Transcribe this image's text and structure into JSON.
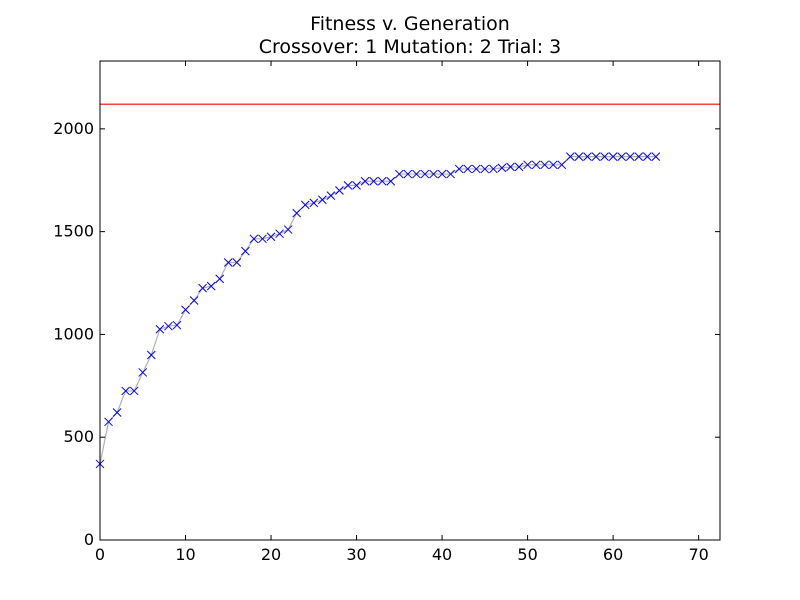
{
  "chart_data": {
    "type": "line",
    "title": "Fitness v. Generation",
    "subtitle": "Crossover: 1 Mutation: 2 Trial: 3",
    "xlim": [
      0,
      72.5
    ],
    "ylim": [
      0,
      2330
    ],
    "x_ticks": [
      0,
      10,
      20,
      30,
      40,
      50,
      60,
      70
    ],
    "y_ticks": [
      0,
      500,
      1000,
      1500,
      2000
    ],
    "grid": false,
    "reference_line": {
      "y": 2120,
      "color": "#ff0000"
    },
    "series": [
      {
        "marker": "x",
        "marker_color": "#0000ff",
        "line_color": "#b0b0b0",
        "x": [
          0,
          1,
          2,
          3,
          4,
          5,
          6,
          7,
          8,
          9,
          10,
          11,
          12,
          13,
          14,
          15,
          16,
          17,
          18,
          19,
          20,
          21,
          22,
          23,
          24,
          25,
          26,
          27,
          28,
          29,
          30,
          31,
          32,
          33,
          34,
          35,
          36,
          37,
          38,
          39,
          40,
          41,
          42,
          43,
          44,
          45,
          46,
          47,
          48,
          49,
          50,
          51,
          52,
          53,
          54,
          55,
          56,
          57,
          58,
          59,
          60,
          61,
          62,
          63,
          64,
          65
        ],
        "values": [
          370,
          575,
          620,
          725,
          725,
          815,
          900,
          1025,
          1040,
          1045,
          1120,
          1165,
          1225,
          1235,
          1270,
          1350,
          1350,
          1405,
          1465,
          1465,
          1475,
          1490,
          1510,
          1590,
          1630,
          1640,
          1655,
          1675,
          1700,
          1725,
          1725,
          1745,
          1745,
          1745,
          1745,
          1780,
          1780,
          1780,
          1780,
          1780,
          1780,
          1780,
          1805,
          1805,
          1805,
          1805,
          1805,
          1810,
          1815,
          1815,
          1825,
          1825,
          1825,
          1825,
          1825,
          1865,
          1865,
          1865,
          1865,
          1865,
          1865,
          1865,
          1865,
          1865,
          1865,
          1865
        ]
      }
    ]
  }
}
